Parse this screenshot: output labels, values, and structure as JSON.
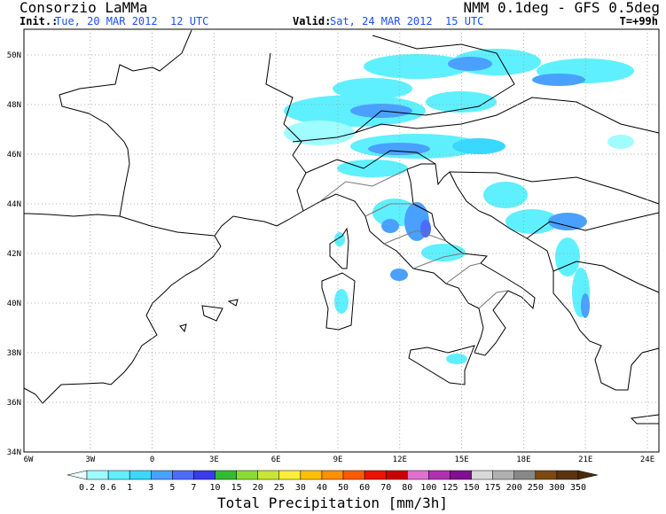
{
  "header": {
    "brand": "Consorzio LaMMa",
    "init_label": "Init.:",
    "init_value": "Tue, 20 MAR 2012  12 UTC",
    "valid_label": "Valid:",
    "valid_value": "Sat, 24 MAR 2012  15 UTC",
    "model": "NMM 0.1deg - GFS 0.5deg",
    "lead_time": "T=+99h"
  },
  "map": {
    "lat_labels": [
      "50N",
      "48N",
      "46N",
      "44N",
      "42N",
      "40N",
      "38N",
      "36N",
      "34N"
    ],
    "lon_labels": [
      "6W",
      "3W",
      "0",
      "3E",
      "6E",
      "9E",
      "12E",
      "15E",
      "18E",
      "21E",
      "24E"
    ]
  },
  "colorbar": {
    "title": "Total Precipitation [mm/3h]",
    "labels": [
      "0.2",
      "0.6",
      "1",
      "3",
      "5",
      "7",
      "10",
      "15",
      "20",
      "25",
      "30",
      "40",
      "50",
      "60",
      "70",
      "80",
      "100",
      "125",
      "150",
      "175",
      "200",
      "250",
      "300",
      "350"
    ],
    "under_color": "#e8ffff",
    "over_color": "#4a2a08",
    "colors": [
      "#9ffcff",
      "#5ef0ff",
      "#38d8ff",
      "#4aa0ff",
      "#4b6cff",
      "#3a3aee",
      "#33bb33",
      "#88dd33",
      "#c8e632",
      "#ffee33",
      "#ffc000",
      "#ff9000",
      "#ff5a00",
      "#ee1100",
      "#cc0000",
      "#e070d0",
      "#b030b0",
      "#801090",
      "#d8d8d8",
      "#b0b0b0",
      "#888888",
      "#7a4a10",
      "#5a3410"
    ]
  }
}
